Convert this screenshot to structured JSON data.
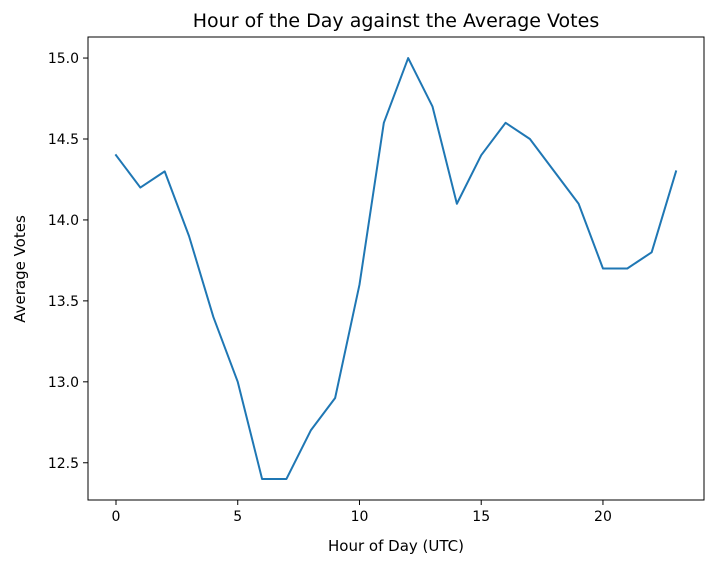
{
  "chart_data": {
    "type": "line",
    "title": "Hour of the Day against the Average Votes",
    "xlabel": "Hour of Day (UTC)",
    "ylabel": "Average Votes",
    "xlim": [
      -1.15,
      24.15
    ],
    "ylim": [
      12.27,
      15.13
    ],
    "xticks": [
      0,
      5,
      10,
      15,
      20
    ],
    "xtick_labels": [
      "0",
      "5",
      "10",
      "15",
      "20"
    ],
    "yticks": [
      12.5,
      13.0,
      13.5,
      14.0,
      14.5,
      15.0
    ],
    "ytick_labels": [
      "12.5",
      "13.0",
      "13.5",
      "14.0",
      "14.5",
      "15.0"
    ],
    "grid": false,
    "series": [
      {
        "name": "Average Votes",
        "color": "#1f77b4",
        "x": [
          0,
          1,
          2,
          3,
          4,
          5,
          6,
          7,
          8,
          9,
          10,
          11,
          12,
          13,
          14,
          15,
          16,
          17,
          18,
          19,
          20,
          21,
          22,
          23
        ],
        "y": [
          14.4,
          14.2,
          14.3,
          13.9,
          13.4,
          13.0,
          12.4,
          12.4,
          12.7,
          12.9,
          13.6,
          14.6,
          15.0,
          14.7,
          14.1,
          14.4,
          14.6,
          14.5,
          14.3,
          14.1,
          13.7,
          13.7,
          13.8,
          14.3
        ]
      }
    ]
  }
}
